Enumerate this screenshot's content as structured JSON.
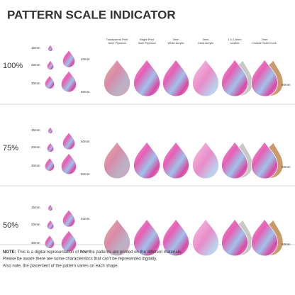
{
  "header": {
    "title": "PATTERN SCALE INDICATOR"
  },
  "sections": [
    {
      "scale": "100%"
    },
    {
      "scale": "75%"
    },
    {
      "scale": "50%"
    }
  ],
  "sizes": [
    "15mm",
    "20mm",
    "30mm",
    "40mm",
    "50mm"
  ],
  "large_size": "60mm",
  "materials": [
    {
      "lines": [
        "Transparent Print",
        "3mm Plywood"
      ]
    },
    {
      "lines": [
        "Bright Print",
        "3mm Plywood"
      ]
    },
    {
      "lines": [
        "3mm",
        "White Acrylic"
      ]
    },
    {
      "lines": [
        "3mm",
        "Clear Acrylic"
      ]
    },
    {
      "lines": [
        "1.6-1.8mm",
        "Leather"
      ]
    },
    {
      "lines": [
        "2mm",
        "Double Sided Cork"
      ]
    }
  ],
  "note": {
    "label": "NOTE:",
    "lines": [
      "This is a digital representation of how the patterns are printed on the different materials.",
      "Please be aware there are some characteristics that can't be represented digitally.",
      "Also note, the placement of the pattern varies on each shape."
    ]
  }
}
